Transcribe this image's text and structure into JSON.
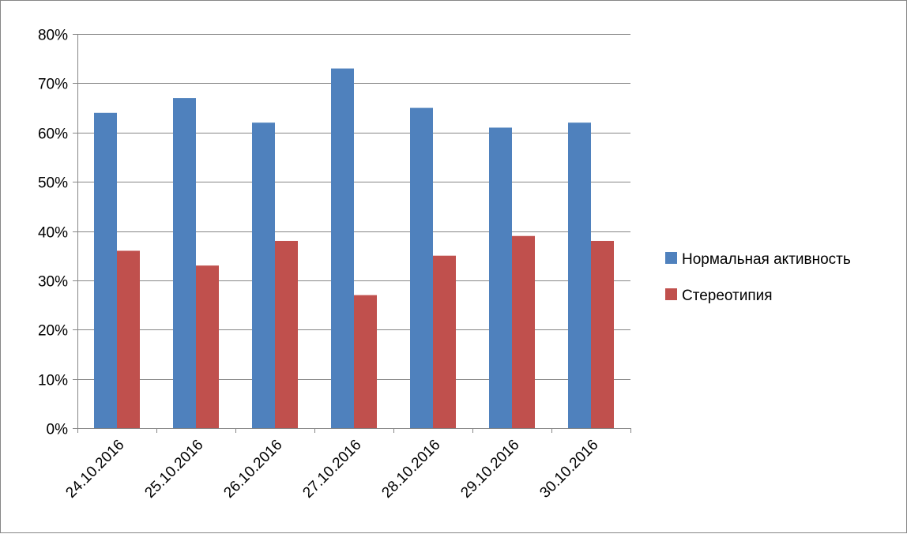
{
  "chart_data": {
    "type": "bar",
    "categories": [
      "24.10.2016",
      "25.10.2016",
      "26.10.2016",
      "27.10.2016",
      "28.10.2016",
      "29.10.2016",
      "30.10.2016"
    ],
    "series": [
      {
        "name": "Нормальная активность",
        "color": "#4F81BD",
        "values": [
          64,
          67,
          62,
          73,
          65,
          61,
          62
        ]
      },
      {
        "name": "Стереотипия",
        "color": "#C0504D",
        "values": [
          36,
          33,
          38,
          27,
          35,
          39,
          38
        ]
      }
    ],
    "y_ticks": [
      "0%",
      "10%",
      "20%",
      "30%",
      "40%",
      "50%",
      "60%",
      "70%",
      "80%"
    ],
    "ylim": [
      0,
      80
    ],
    "y_unit": "percent",
    "grid": true,
    "legend_position": "right",
    "x_label_rotation": "diagonal",
    "title": "",
    "xlabel": "",
    "ylabel": ""
  }
}
